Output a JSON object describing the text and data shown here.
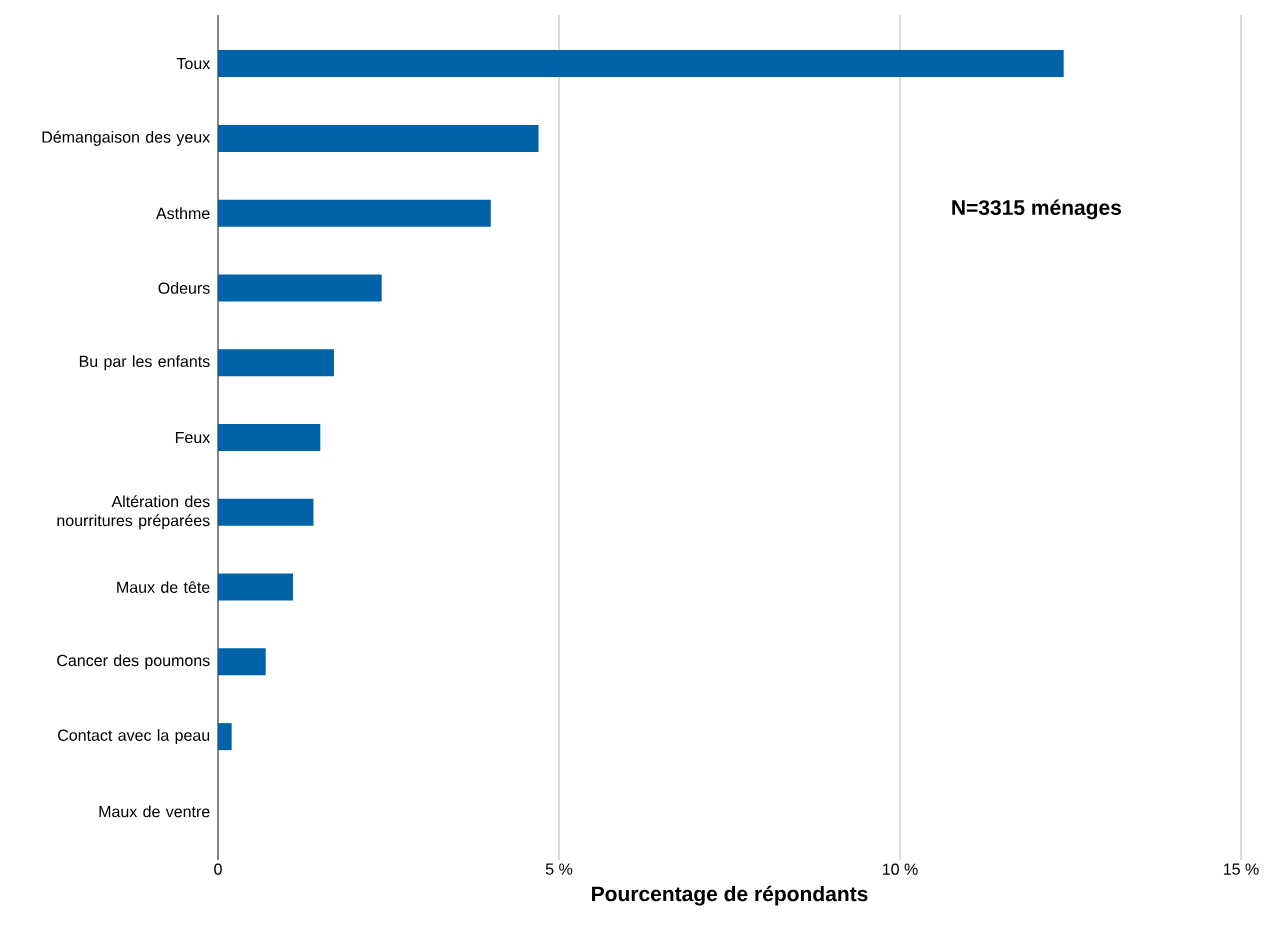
{
  "chart_data": {
    "type": "bar",
    "orientation": "horizontal",
    "xlabel": "Pourcentage de répondants",
    "categories": [
      "Toux",
      "Démangaison des yeux",
      "Asthme",
      "Odeurs",
      "Bu par les enfants",
      "Feux",
      "Altération des nourritures préparées",
      "Maux de tête",
      "Cancer des poumons",
      "Contact avec la peau",
      "Maux de ventre"
    ],
    "values": [
      12.4,
      4.7,
      4.0,
      2.4,
      1.7,
      1.5,
      1.4,
      1.1,
      0.7,
      0.2,
      0
    ],
    "color": "#0063a8",
    "xlim": [
      0,
      15
    ],
    "xticks": [
      0,
      {
        "value": 5,
        "label": "5 %"
      },
      {
        "value": 10,
        "label": "10 %"
      },
      {
        "value": 15,
        "label": "15 %"
      }
    ],
    "grid": "x",
    "annotations": [
      "N=3315 ménages"
    ]
  }
}
